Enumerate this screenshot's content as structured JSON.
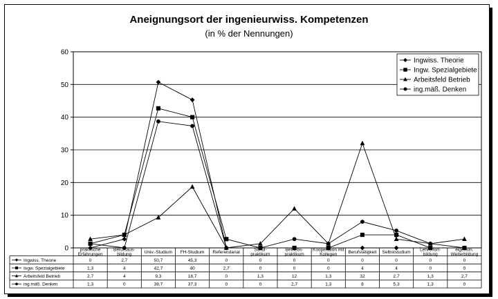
{
  "chart_data": {
    "type": "line",
    "title": "Aneignungsort der ingenieurwiss. Kompetenzen",
    "subtitle": "(in % der Nennungen)",
    "ylim": [
      0,
      60
    ],
    "yticks": [
      "0",
      "10",
      "20",
      "30",
      "40",
      "50",
      "60"
    ],
    "grid": true,
    "legend_position": "top-right",
    "categories": [
      [
        "praktische",
        "Erfahrungen"
      ],
      [
        "Berufsaus-",
        "bildung"
      ],
      [
        "Univ.-Studium"
      ],
      [
        "FH-Studium"
      ],
      [
        "Referendariat"
      ],
      [
        "Schul-",
        "praktikum"
      ],
      [
        "Betriebs-",
        "praktikum"
      ],
      [
        "Kooperation mit",
        "Kollegen"
      ],
      [
        "Berufstätigkeit"
      ],
      [
        "Selbststudium"
      ],
      [
        "Lehrerfort-",
        "bildung"
      ],
      [
        "eigenstn.",
        "Weiterbildung"
      ]
    ],
    "series": [
      {
        "name": "Ingwiss. Theorie",
        "marker": "diamond",
        "values": [
          0,
          2.7,
          50.7,
          45.3,
          0,
          0,
          0,
          0,
          0,
          0,
          0,
          0
        ],
        "labels": [
          "0",
          "2,7",
          "50,7",
          "45,3",
          "0",
          "0",
          "0",
          "0",
          "0",
          "0",
          "0",
          "0"
        ]
      },
      {
        "name": "Ingw. Spezialgebiete",
        "marker": "square",
        "values": [
          1.3,
          4,
          42.7,
          40,
          2.7,
          0,
          0,
          0,
          4,
          4,
          0,
          0
        ],
        "labels": [
          "1,3",
          "4",
          "42,7",
          "40",
          "2,7",
          "0",
          "0",
          "0",
          "4",
          "4",
          "0",
          "0"
        ]
      },
      {
        "name": "Arbeitsfeld Betrieb",
        "marker": "triangle",
        "values": [
          2.7,
          4,
          9.3,
          18.7,
          0,
          1.3,
          12,
          1.3,
          32,
          2.7,
          1.3,
          2.7
        ],
        "labels": [
          "2,7",
          "4",
          "9,3",
          "18,7",
          "0",
          "1,3",
          "12",
          "1,3",
          "32",
          "2,7",
          "1,3",
          "2,7"
        ]
      },
      {
        "name": "ing.mäß. Denken",
        "marker": "circle",
        "values": [
          1.3,
          0,
          38.7,
          37.3,
          0,
          0,
          2.7,
          1.3,
          8,
          5.3,
          1.3,
          0
        ],
        "labels": [
          "1,3",
          "0",
          "38,7",
          "37,3",
          "0",
          "0",
          "2,7",
          "1,3",
          "8",
          "5,3",
          "1,3",
          "0"
        ]
      }
    ]
  }
}
